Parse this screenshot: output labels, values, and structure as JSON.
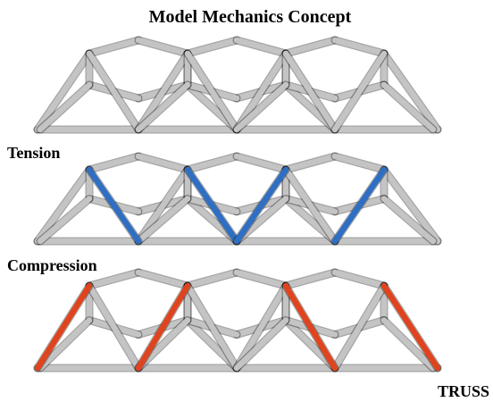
{
  "title": "Model Mechanics Concept",
  "labels": {
    "tension": "Tension",
    "compression": "Compression",
    "truss": "TRUSS"
  }
}
